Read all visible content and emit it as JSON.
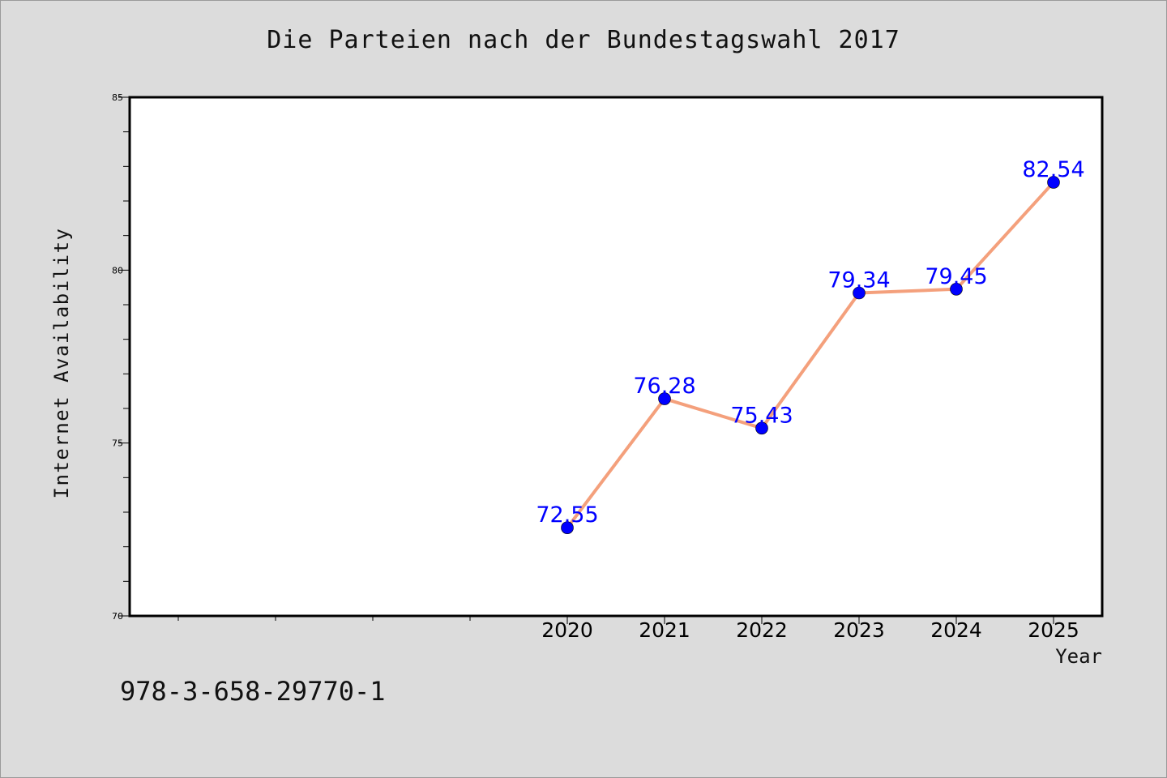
{
  "chart_data": {
    "type": "line",
    "title": "Die Parteien nach der Bundestagswahl 2017",
    "xlabel": "Year",
    "ylabel": "Internet Availability",
    "x": [
      2020,
      2021,
      2022,
      2023,
      2024,
      2025
    ],
    "x_tick_labels": [
      "2020",
      "2021",
      "2022",
      "2023",
      "2024",
      "2025"
    ],
    "x_range": [
      2015.5,
      2025.5
    ],
    "y_range": [
      70,
      85
    ],
    "y_ticks": [
      70,
      75,
      80,
      85
    ],
    "y_tick_labels": [
      "70",
      "75",
      "80",
      "85"
    ],
    "series": [
      {
        "values": [
          72.55,
          76.28,
          75.43,
          79.34,
          79.45,
          82.54
        ],
        "data_labels": [
          "72.55",
          "76.28",
          "75.43",
          "79.34",
          "79.45",
          "82.54"
        ],
        "line_color": "#f4a07c",
        "marker_color": "#0000ff"
      }
    ],
    "grid": false,
    "background_color": "#dcdcdc",
    "plot_background": "#ffffff",
    "label_color": "#0000ff"
  },
  "footnote": "978-3-658-29770-1"
}
